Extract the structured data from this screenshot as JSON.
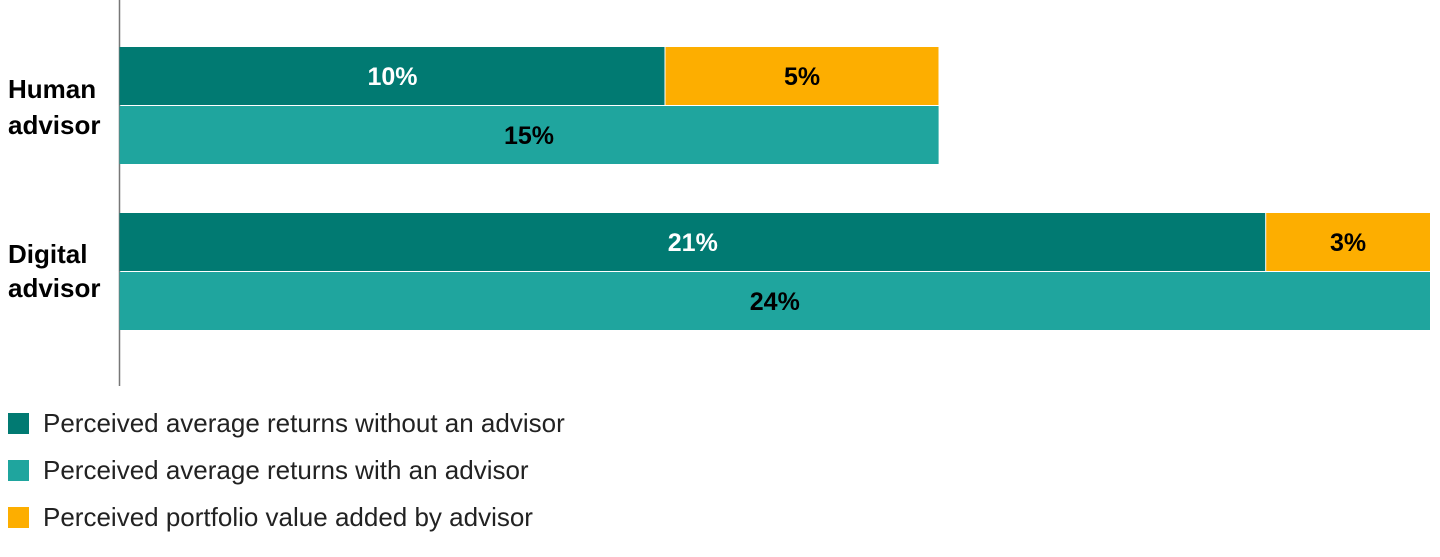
{
  "chart_data": {
    "type": "bar",
    "orientation": "horizontal",
    "stacked_and_grouped": true,
    "categories": [
      "Human advisor",
      "Digital advisor"
    ],
    "category_label_lines": [
      [
        "Human",
        "advisor"
      ],
      [
        "Digital",
        "advisor"
      ]
    ],
    "series": [
      {
        "name": "Perceived average returns without an advisor",
        "key": "without",
        "values": [
          10,
          21
        ],
        "labels": [
          "10%",
          "21%"
        ],
        "color": "#017a72",
        "label_color": "#ffffff",
        "row": "top"
      },
      {
        "name": "Perceived portfolio value added by advisor",
        "key": "added",
        "values": [
          5,
          3
        ],
        "labels": [
          "5%",
          "3%"
        ],
        "color": "#fdae00",
        "label_color": "#000000",
        "row": "top"
      },
      {
        "name": "Perceived average returns with an advisor",
        "key": "with",
        "values": [
          15,
          24
        ],
        "labels": [
          "15%",
          "24%"
        ],
        "color": "#1fa59e",
        "label_color": "#000000",
        "row": "bottom"
      }
    ],
    "xlim": [
      0,
      24
    ],
    "grid": false,
    "legend_position": "bottom-left"
  },
  "legend": [
    {
      "label": "Perceived average returns without an advisor",
      "color": "#017a72"
    },
    {
      "label": "Perceived average returns with an advisor",
      "color": "#1fa59e"
    },
    {
      "label": "Perceived portfolio value added by advisor",
      "color": "#fdae00"
    }
  ]
}
